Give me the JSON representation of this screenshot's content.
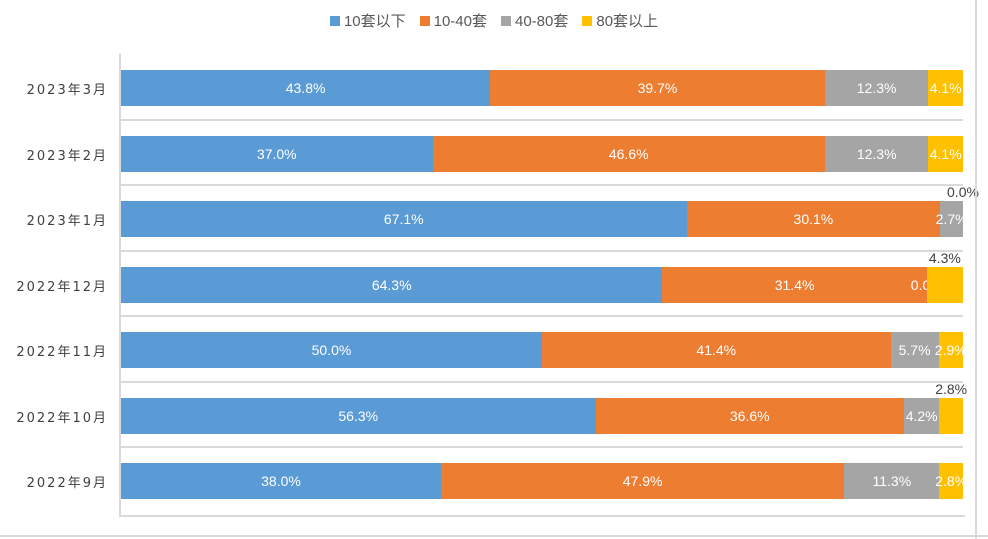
{
  "chart_data": {
    "type": "bar",
    "stacked": true,
    "orientation": "horizontal",
    "percent": true,
    "legend_position": "top",
    "categories": [
      "2023年3月",
      "2023年2月",
      "2023年1月",
      "2022年12月",
      "2022年11月",
      "2022年10月",
      "2022年9月"
    ],
    "series": [
      {
        "name": "10套以下",
        "color": "#5b9bd5",
        "values": [
          43.8,
          37.0,
          67.1,
          64.3,
          50.0,
          56.3,
          38.0
        ]
      },
      {
        "name": "10-40套",
        "color": "#ed7d31",
        "values": [
          39.7,
          46.6,
          30.1,
          31.4,
          41.4,
          36.6,
          47.9
        ]
      },
      {
        "name": "40-80套",
        "color": "#a5a5a5",
        "values": [
          12.3,
          12.3,
          2.7,
          0.0,
          5.7,
          4.2,
          11.3
        ]
      },
      {
        "name": "80套以上",
        "color": "#ffc000",
        "values": [
          4.1,
          4.1,
          0.0,
          4.3,
          2.9,
          2.8,
          2.8
        ]
      }
    ]
  }
}
